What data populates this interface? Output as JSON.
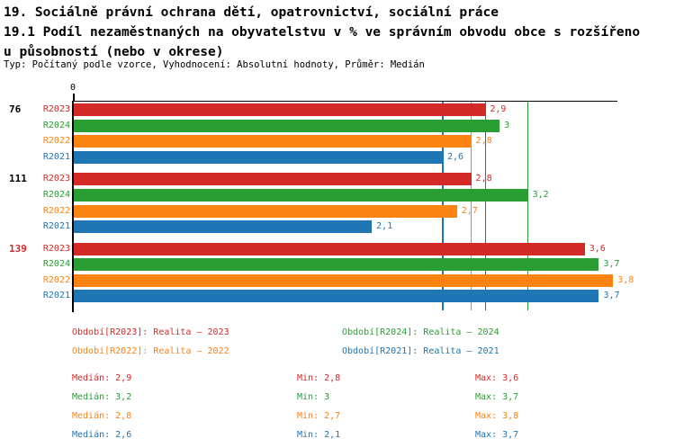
{
  "header": {
    "title_line1": "19. Sociálně právní ochrana dětí, opatrovnictví, sociální práce",
    "title_line2": "19.1 Podíl nezaměstnaných na obyvatelstvu v % ve správním obvodu obce s rozšířeno",
    "title_line3": "u působností (nebo v okrese)",
    "meta_line": "Typ: Počítaný podle vzorce, Vyhodnocení: Absolutní hodnoty, Průměr: Medián"
  },
  "colors": {
    "R2023": "#d32927",
    "R2024": "#2a9e32",
    "R2022": "#fb8311",
    "R2021": "#2075b4",
    "axis": "#000000",
    "group_label": "#000000",
    "group_label_highlight": "#d32927"
  },
  "chart_data": {
    "type": "bar",
    "orientation": "horizontal",
    "x_axis": {
      "origin_label": "0",
      "min": 0,
      "max": 3.83,
      "gridlines": "median-lines-per-series"
    },
    "series_order": [
      "R2023",
      "R2024",
      "R2022",
      "R2021"
    ],
    "legend_position": "bottom",
    "groups": [
      {
        "label": "76",
        "highlighted": false,
        "bars": [
          {
            "series": "R2023",
            "value": 2.9,
            "value_label": "2,9"
          },
          {
            "series": "R2024",
            "value": 3.0,
            "value_label": "3"
          },
          {
            "series": "R2022",
            "value": 2.8,
            "value_label": "2,8"
          },
          {
            "series": "R2021",
            "value": 2.6,
            "value_label": "2,6"
          }
        ]
      },
      {
        "label": "111",
        "highlighted": false,
        "bars": [
          {
            "series": "R2023",
            "value": 2.8,
            "value_label": "2,8"
          },
          {
            "series": "R2024",
            "value": 3.2,
            "value_label": "3,2"
          },
          {
            "series": "R2022",
            "value": 2.7,
            "value_label": "2,7"
          },
          {
            "series": "R2021",
            "value": 2.1,
            "value_label": "2,1"
          }
        ]
      },
      {
        "label": "139",
        "highlighted": true,
        "bars": [
          {
            "series": "R2023",
            "value": 3.6,
            "value_label": "3,6"
          },
          {
            "series": "R2024",
            "value": 3.7,
            "value_label": "3,7"
          },
          {
            "series": "R2022",
            "value": 3.8,
            "value_label": "3,8"
          },
          {
            "series": "R2021",
            "value": 3.7,
            "value_label": "3,7"
          }
        ]
      }
    ],
    "median_lines": [
      {
        "series": "R2021",
        "value": 2.6
      },
      {
        "series": "R2022",
        "value": 2.8
      },
      {
        "series": "R2023",
        "value": 2.9
      },
      {
        "series": "R2024",
        "value": 3.2
      }
    ]
  },
  "legend": {
    "items": [
      {
        "series": "R2023",
        "label": "Období[R2023]: Realita – 2023"
      },
      {
        "series": "R2024",
        "label": "Období[R2024]: Realita – 2024"
      },
      {
        "series": "R2022",
        "label": "Období[R2022]: Realita – 2022"
      },
      {
        "series": "R2021",
        "label": "Období[R2021]: Realita – 2021"
      }
    ]
  },
  "stats": {
    "rows": [
      {
        "series": "R2023",
        "median": "Medián: 2,9",
        "min": "Min: 2,8",
        "max": "Max: 3,6"
      },
      {
        "series": "R2024",
        "median": "Medián: 3,2",
        "min": "Min: 3",
        "max": "Max: 3,7"
      },
      {
        "series": "R2022",
        "median": "Medián: 2,8",
        "min": "Min: 2,7",
        "max": "Max: 3,8"
      },
      {
        "series": "R2021",
        "median": "Medián: 2,6",
        "min": "Min: 2,1",
        "max": "Max: 3,7"
      }
    ]
  }
}
